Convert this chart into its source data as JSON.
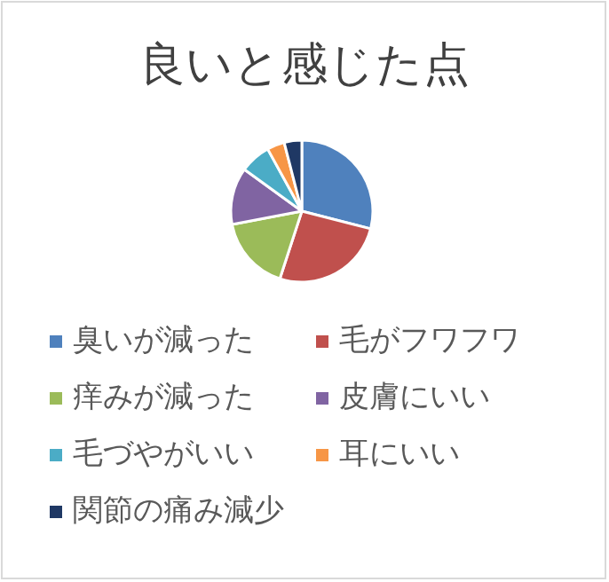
{
  "chart_data": {
    "type": "pie",
    "title": "良いと感じた点",
    "categories": [
      "臭いが減った",
      "毛がフワフワ",
      "痒みが減った",
      "皮膚にいい",
      "毛づやがいい",
      "耳にいい",
      "関節の痛み減少"
    ],
    "values": [
      29,
      26,
      17,
      13,
      7,
      4,
      4
    ],
    "colors": [
      "#4f81bd",
      "#c0504d",
      "#9bbb59",
      "#8064a2",
      "#4bacc6",
      "#f79646",
      "#1f3864"
    ],
    "legend": "bottom"
  }
}
